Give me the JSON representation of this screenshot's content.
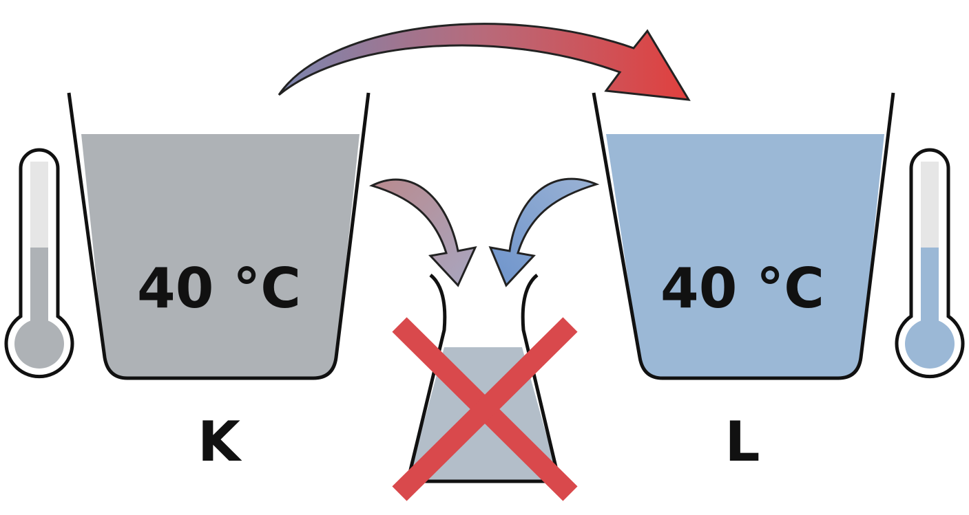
{
  "containers": [
    {
      "temperature": "40 °C",
      "label": "K"
    },
    {
      "temperature": "40 °C",
      "label": "L"
    }
  ]
}
